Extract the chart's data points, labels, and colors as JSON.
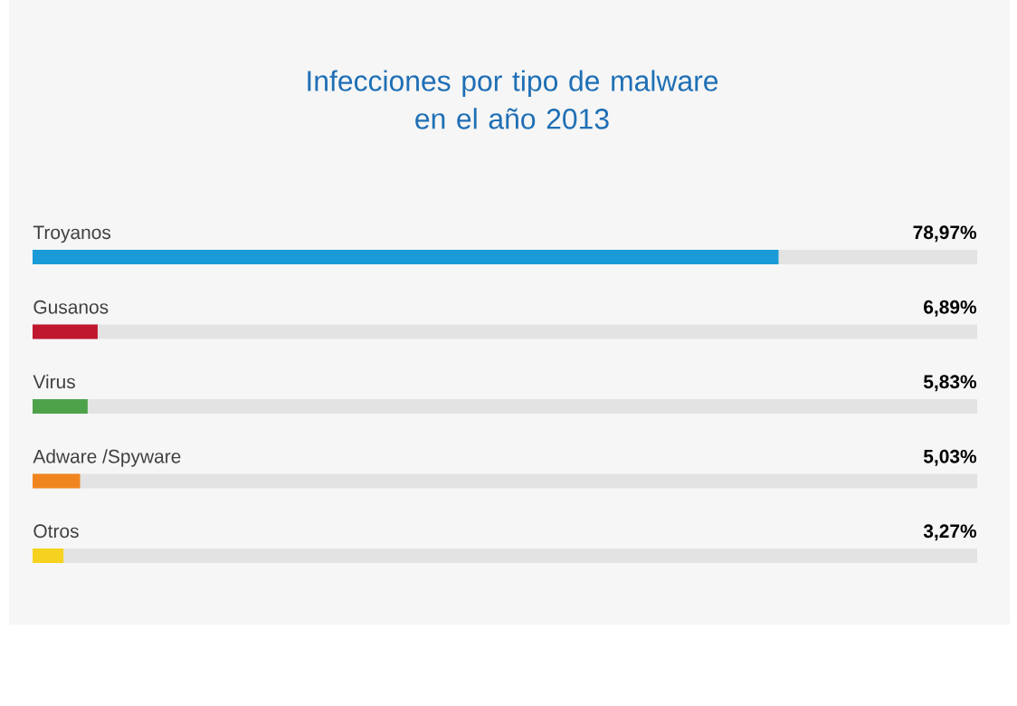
{
  "chart_data": {
    "type": "bar",
    "orientation": "horizontal",
    "title": "Infecciones por tipo de malware\nen el año 2013",
    "categories": [
      "Troyanos",
      "Gusanos",
      "Virus",
      "Adware /Spyware",
      "Otros"
    ],
    "values": [
      78.97,
      6.89,
      5.83,
      5.03,
      3.27
    ],
    "value_labels": [
      "78,97%",
      "6,89%",
      "5,83%",
      "5,03%",
      "3,27%"
    ],
    "colors": [
      "#1a9ad6",
      "#c0172d",
      "#4ea24a",
      "#f0851f",
      "#f5d21f"
    ],
    "xlim": [
      0,
      100
    ]
  }
}
